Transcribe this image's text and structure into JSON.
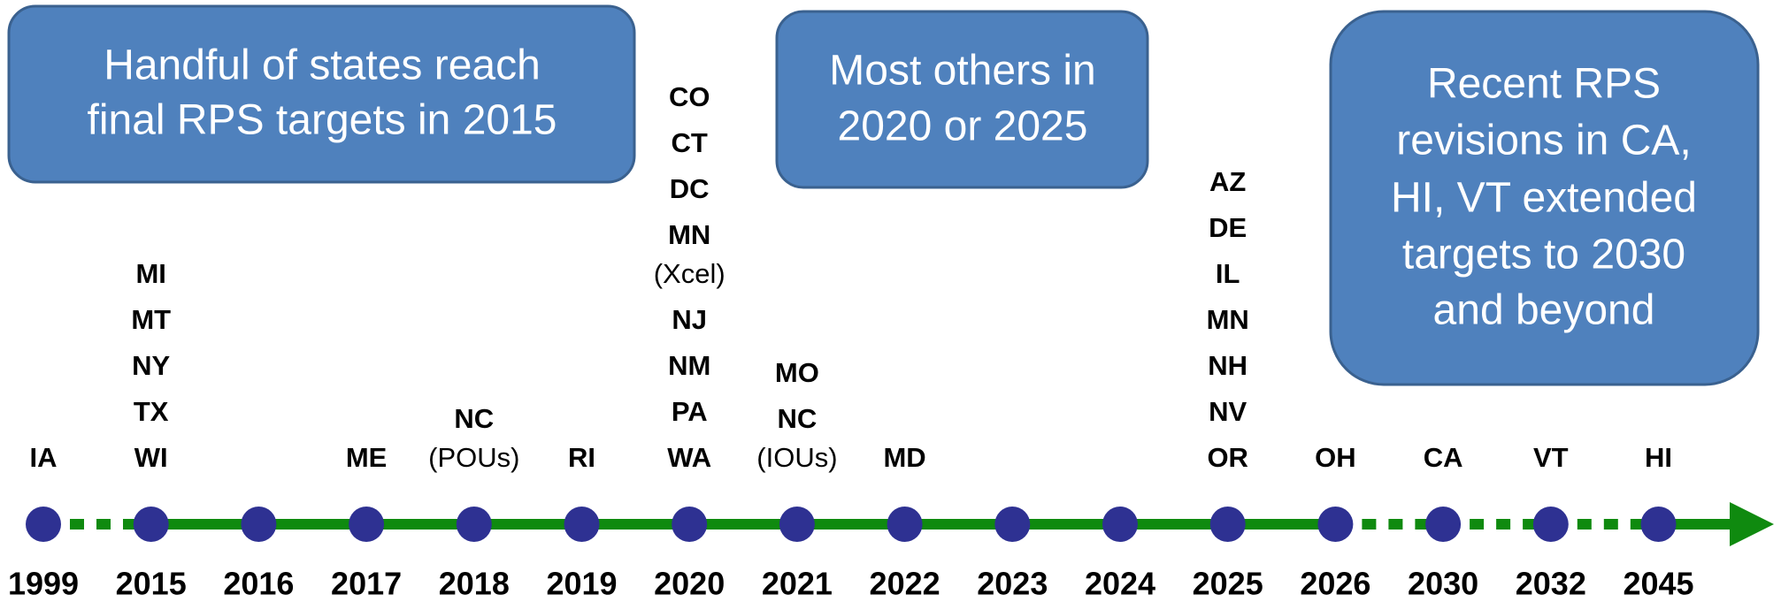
{
  "callouts": [
    {
      "lines": [
        "Handful of states reach",
        "final RPS targets in 2015"
      ]
    },
    {
      "lines": [
        "Most others in",
        "2020 or 2025"
      ]
    },
    {
      "lines": [
        "Recent RPS",
        "revisions in CA,",
        "HI, VT extended",
        "targets to 2030",
        "and beyond"
      ]
    }
  ],
  "timeline": [
    {
      "year": "1999",
      "states": [
        {
          "state": "IA"
        }
      ]
    },
    {
      "year": "2015",
      "break_before": true,
      "states": [
        {
          "state": "MI"
        },
        {
          "state": "MT"
        },
        {
          "state": "NY"
        },
        {
          "state": "TX"
        },
        {
          "state": "WI"
        }
      ]
    },
    {
      "year": "2016",
      "states": []
    },
    {
      "year": "2017",
      "states": [
        {
          "state": "ME"
        }
      ]
    },
    {
      "year": "2018",
      "states": [
        {
          "state": "NC",
          "note": "(POUs)"
        }
      ]
    },
    {
      "year": "2019",
      "states": [
        {
          "state": "RI"
        }
      ]
    },
    {
      "year": "2020",
      "states": [
        {
          "state": "CO"
        },
        {
          "state": "CT"
        },
        {
          "state": "DC"
        },
        {
          "state": "MN",
          "note": "(Xcel)"
        },
        {
          "state": "NJ"
        },
        {
          "state": "NM"
        },
        {
          "state": "PA"
        },
        {
          "state": "WA"
        }
      ]
    },
    {
      "year": "2021",
      "states": [
        {
          "state": "MO"
        },
        {
          "state": "NC",
          "note": "(IOUs)"
        }
      ]
    },
    {
      "year": "2022",
      "states": [
        {
          "state": "MD"
        }
      ]
    },
    {
      "year": "2023",
      "states": []
    },
    {
      "year": "2024",
      "states": []
    },
    {
      "year": "2025",
      "states": [
        {
          "state": "AZ"
        },
        {
          "state": "DE"
        },
        {
          "state": "IL"
        },
        {
          "state": "MN"
        },
        {
          "state": "NH"
        },
        {
          "state": "NV"
        },
        {
          "state": "OR"
        }
      ]
    },
    {
      "year": "2026",
      "states": [
        {
          "state": "OH"
        }
      ]
    },
    {
      "year": "2030",
      "break_before": true,
      "states": [
        {
          "state": "CA"
        }
      ]
    },
    {
      "year": "2032",
      "break_before": true,
      "states": [
        {
          "state": "VT"
        }
      ]
    },
    {
      "year": "2045",
      "break_before": true,
      "states": [
        {
          "state": "HI"
        }
      ]
    }
  ]
}
